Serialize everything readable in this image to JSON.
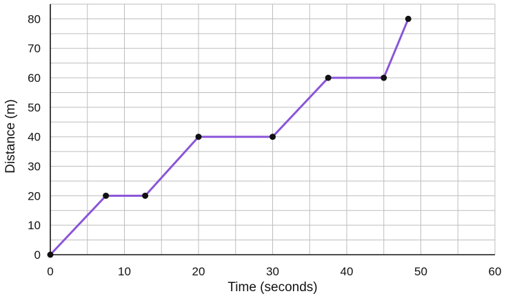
{
  "chart_data": {
    "type": "line",
    "title": "",
    "xlabel": "Time (seconds)",
    "ylabel": "Distance (m)",
    "xlim": [
      0,
      60
    ],
    "ylim": [
      0,
      85
    ],
    "grid": true,
    "x_ticks": [
      0,
      10,
      20,
      30,
      40,
      50,
      60
    ],
    "y_ticks": [
      0,
      10,
      20,
      30,
      40,
      50,
      60,
      70,
      80
    ],
    "series": [
      {
        "x": [
          0,
          7.5,
          12.8,
          20,
          30,
          37.5,
          45,
          48.3
        ],
        "y": [
          0,
          20,
          20,
          40,
          40,
          60,
          60,
          80
        ]
      }
    ],
    "colors": {
      "line": "#8a55d8",
      "marker": "#111111",
      "grid": "#bdbdbd",
      "axis": "#111111"
    }
  }
}
